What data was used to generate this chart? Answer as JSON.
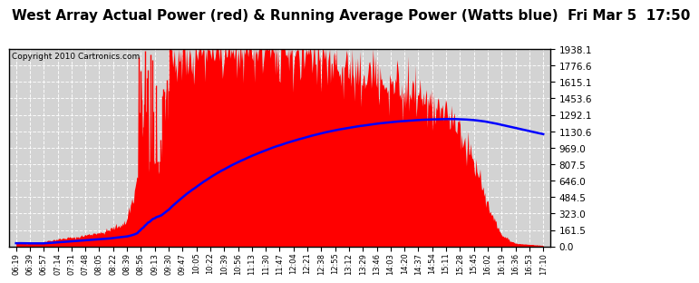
{
  "title": "West Array Actual Power (red) & Running Average Power (Watts blue)  Fri Mar 5  17:50",
  "copyright": "Copyright 2010 Cartronics.com",
  "ylabel_right": [
    "0.0",
    "161.5",
    "323.0",
    "484.5",
    "646.0",
    "807.5",
    "969.0",
    "1130.6",
    "1292.1",
    "1453.6",
    "1615.1",
    "1776.6",
    "1938.1"
  ],
  "ymax": 1938.1,
  "ymin": 0.0,
  "background_color": "#ffffff",
  "plot_bg_color": "#d3d3d3",
  "red_color": "#ff0000",
  "blue_color": "#0000ff",
  "title_fontsize": 11,
  "x_labels": [
    "06:19",
    "06:39",
    "06:57",
    "07:14",
    "07:31",
    "07:48",
    "08:05",
    "08:22",
    "08:39",
    "08:56",
    "09:13",
    "09:30",
    "09:47",
    "10:05",
    "10:22",
    "10:39",
    "10:56",
    "11:13",
    "11:30",
    "11:47",
    "12:04",
    "12:21",
    "12:38",
    "12:55",
    "13:12",
    "13:29",
    "13:46",
    "14:03",
    "14:20",
    "14:37",
    "14:54",
    "15:11",
    "15:28",
    "15:45",
    "16:02",
    "16:19",
    "16:36",
    "16:53",
    "17:10"
  ],
  "grid_color": "#c0c0c0",
  "spine_color": "#000000"
}
